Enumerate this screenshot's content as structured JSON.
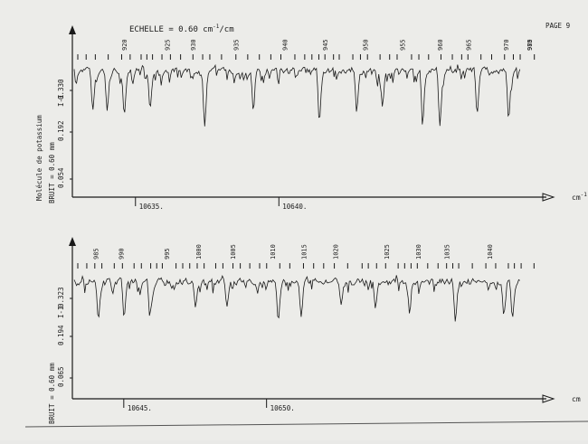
{
  "header": {
    "scale_label": "ECHELLE = 0.60 cm",
    "scale_exponent": "-1",
    "scale_unit_suffix": "/cm",
    "page_label": "PAGE 9"
  },
  "side_label": "Molécule de potassium",
  "chart_data": [
    {
      "type": "line",
      "panel": "top",
      "noise_label": "BRUIT = 0.60 mm",
      "intensity_symbol": "I-I",
      "y_tick_labels": [
        "0.330",
        "0.192",
        "0.054"
      ],
      "x_unit_label": "cm",
      "x_unit_exponent": "-1",
      "x_ticks": [
        {
          "label": "10635.",
          "x": 10635
        },
        {
          "label": "10640.",
          "x": 10640
        }
      ],
      "xlim": [
        10632.8,
        10649.2
      ],
      "line_number_labels": [
        "920",
        "925",
        "930",
        "935",
        "940",
        "945",
        "950",
        "955",
        "960",
        "965",
        "970",
        "975",
        "980"
      ],
      "line_number_positions": [
        10634.6,
        10636.1,
        10637.0,
        10638.5,
        10640.2,
        10641.6,
        10643.0,
        10644.3,
        10645.6,
        10646.6,
        10647.9,
        10649.2,
        10650.6
      ],
      "strong_lines": [
        10633.5,
        10634.0,
        10634.6,
        10635.5,
        10637.4,
        10639.1,
        10641.4,
        10642.7,
        10643.6,
        10645.0,
        10645.6,
        10646.9,
        10648.0,
        10649.2
      ],
      "noise_seed": 7
    },
    {
      "type": "line",
      "panel": "bottom",
      "noise_label": "BRUIT = 0.60 mm",
      "intensity_symbol": "I-I",
      "y_tick_labels": [
        "0.323",
        "0.194",
        "0.065"
      ],
      "x_unit_label": "cm",
      "x_unit_exponent": "",
      "x_ticks": [
        {
          "label": "10645.",
          "x": 10645
        },
        {
          "label": "10650.",
          "x": 10650
        }
      ],
      "xlim": [
        10643.2,
        10659.8
      ],
      "line_number_labels": [
        "985",
        "990",
        "995",
        "1000",
        "1005",
        "1010",
        "1015",
        "1020",
        "1025",
        "1030",
        "1035",
        "1040"
      ],
      "line_number_positions": [
        10644.0,
        10644.9,
        10646.5,
        10647.6,
        10648.8,
        10650.2,
        10651.3,
        10652.4,
        10654.2,
        10655.3,
        10656.3,
        10657.8
      ],
      "strong_lines": [
        10644.1,
        10645.0,
        10645.9,
        10647.5,
        10648.6,
        10650.4,
        10651.2,
        10652.6,
        10653.8,
        10655.0,
        10656.6,
        10658.3,
        10658.6
      ],
      "noise_seed": 13
    }
  ]
}
